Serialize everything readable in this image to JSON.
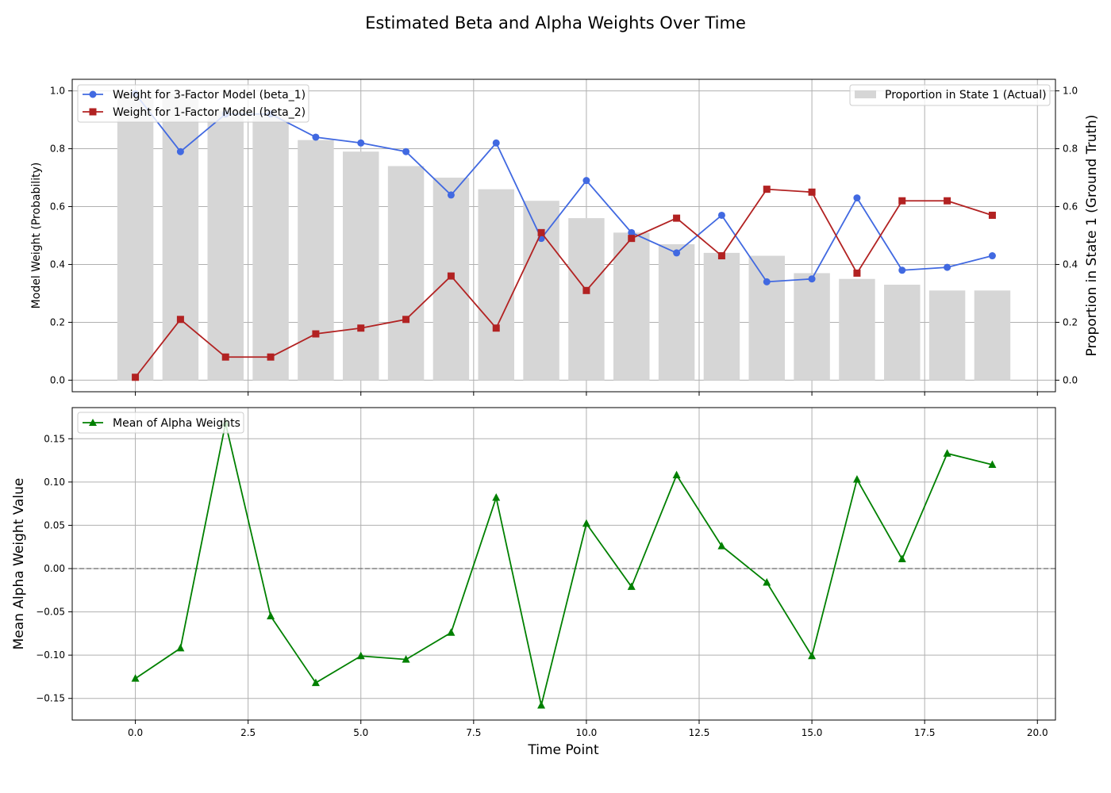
{
  "figure": {
    "title": "Estimated Beta and Alpha Weights Over Time",
    "xlabel": "Time Point"
  },
  "chart_data": [
    {
      "type": "line",
      "panel": "top",
      "ylabel": "Model Weight (Probability)",
      "y2label": "Proportion in State 1 (Ground Truth)",
      "x": [
        0,
        1,
        2,
        3,
        4,
        5,
        6,
        7,
        8,
        9,
        10,
        11,
        12,
        13,
        14,
        15,
        16,
        17,
        18,
        19
      ],
      "xlim": [
        -1.4,
        20.4
      ],
      "ylim": [
        -0.04,
        1.04
      ],
      "y2lim": [
        -0.04,
        1.04
      ],
      "xticks": [
        "0.0",
        "2.5",
        "5.0",
        "7.5",
        "10.0",
        "12.5",
        "15.0",
        "17.5",
        "20.0"
      ],
      "yticks": [
        "0.0",
        "0.2",
        "0.4",
        "0.6",
        "0.8",
        "1.0"
      ],
      "grid": true,
      "bars": {
        "name": "Proportion in State 1 (Actual)",
        "color": "#d6d6d6",
        "values": [
          0.99,
          0.99,
          0.93,
          0.92,
          0.83,
          0.79,
          0.74,
          0.7,
          0.66,
          0.62,
          0.56,
          0.51,
          0.47,
          0.44,
          0.43,
          0.37,
          0.35,
          0.33,
          0.31,
          0.31
        ]
      },
      "series": [
        {
          "name": "Weight for 3-Factor Model (beta_1)",
          "color": "#4169e1",
          "marker": "circle",
          "values": [
            0.99,
            0.79,
            0.92,
            0.92,
            0.84,
            0.82,
            0.79,
            0.64,
            0.82,
            0.49,
            0.69,
            0.51,
            0.44,
            0.57,
            0.34,
            0.35,
            0.63,
            0.38,
            0.39,
            0.43
          ]
        },
        {
          "name": "Weight for 1-Factor Model (beta_2)",
          "color": "#b22222",
          "marker": "square",
          "values": [
            0.01,
            0.21,
            0.08,
            0.08,
            0.16,
            0.18,
            0.21,
            0.36,
            0.18,
            0.51,
            0.31,
            0.49,
            0.56,
            0.43,
            0.66,
            0.65,
            0.37,
            0.62,
            0.62,
            0.57
          ]
        }
      ],
      "legend": [
        "upper-left",
        "upper-right"
      ]
    },
    {
      "type": "line",
      "panel": "bottom",
      "ylabel": "Mean Alpha Weight Value",
      "x": [
        0,
        1,
        2,
        3,
        4,
        5,
        6,
        7,
        8,
        9,
        10,
        11,
        12,
        13,
        14,
        15,
        16,
        17,
        18,
        19
      ],
      "xlim": [
        -1.4,
        20.4
      ],
      "ylim": [
        -0.175,
        0.186
      ],
      "yticks": [
        "−0.15",
        "−0.10",
        "−0.05",
        "0.00",
        "0.05",
        "0.10",
        "0.15"
      ],
      "grid": true,
      "reference_line": 0,
      "series": [
        {
          "name": "Mean of Alpha Weights",
          "color": "#008000",
          "marker": "triangle",
          "values": [
            -0.127,
            -0.092,
            0.168,
            -0.055,
            -0.132,
            -0.101,
            -0.105,
            -0.074,
            0.082,
            -0.158,
            0.052,
            -0.021,
            0.108,
            0.026,
            -0.016,
            -0.101,
            0.103,
            0.011,
            0.133,
            0.12
          ]
        }
      ],
      "legend": "upper-left"
    }
  ]
}
